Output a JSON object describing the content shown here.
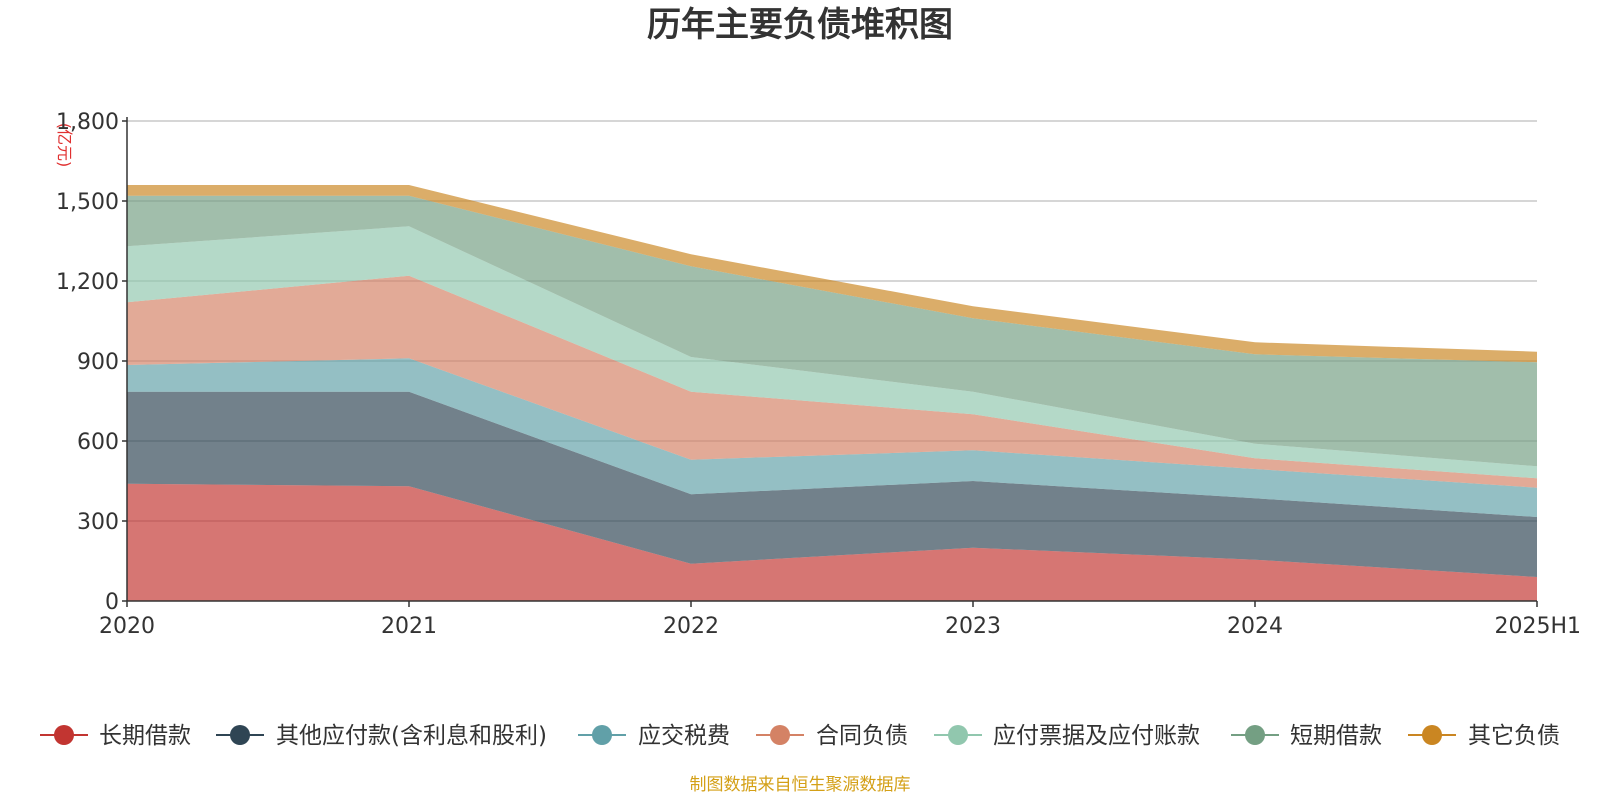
{
  "chart_data": {
    "type": "area",
    "stacked": true,
    "title": "历年主要负债堆积图",
    "ylabel": "(亿元)",
    "xlabel": "",
    "categories": [
      "2020",
      "2021",
      "2022",
      "2023",
      "2024",
      "2025H1"
    ],
    "ylim": [
      0,
      1800
    ],
    "yticks": [
      "0",
      "300",
      "600",
      "900",
      "1,200",
      "1,500",
      "1,800"
    ],
    "ytick_values": [
      0,
      300,
      600,
      900,
      1200,
      1500,
      1800
    ],
    "grid": true,
    "legend_position": "bottom",
    "series": [
      {
        "name": "长期借款",
        "color": "#c23531",
        "values": [
          440,
          430,
          140,
          200,
          155,
          90
        ]
      },
      {
        "name": "其他应付款(含利息和股利)",
        "color": "#2f4554",
        "values": [
          345,
          355,
          260,
          250,
          230,
          225
        ]
      },
      {
        "name": "应交税费",
        "color": "#61a0a8",
        "values": [
          100,
          125,
          130,
          115,
          110,
          110
        ]
      },
      {
        "name": "合同负债",
        "color": "#d48265",
        "values": [
          235,
          310,
          255,
          135,
          40,
          35
        ]
      },
      {
        "name": "应付票据及应付账款",
        "color": "#91c7ae",
        "values": [
          210,
          185,
          130,
          85,
          55,
          45
        ]
      },
      {
        "name": "短期借款",
        "color": "#749f83",
        "values": [
          190,
          115,
          340,
          275,
          335,
          390
        ]
      },
      {
        "name": "其它负债",
        "color": "#ca8622",
        "values": [
          40,
          40,
          45,
          45,
          45,
          40
        ]
      }
    ],
    "source": "制图数据来自恒生聚源数据库"
  }
}
